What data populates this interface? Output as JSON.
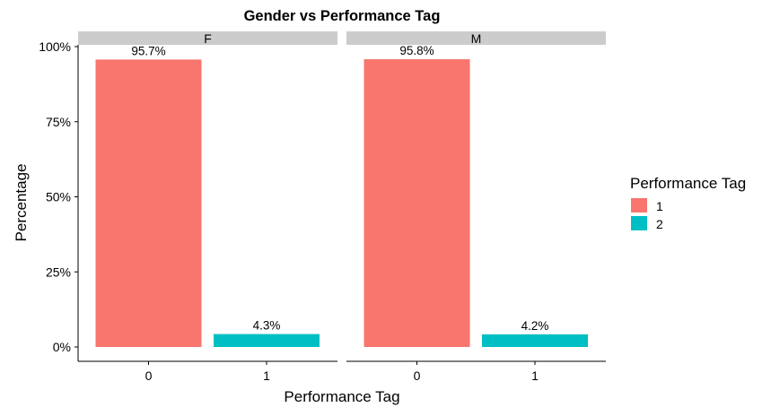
{
  "chart_data": {
    "type": "bar",
    "title": "Gender vs Performance Tag",
    "xlabel": "Performance Tag",
    "ylabel": "Percentage",
    "ylim": [
      0,
      100
    ],
    "yticks": [
      0,
      25,
      50,
      75,
      100
    ],
    "ytick_labels": [
      "0%",
      "25%",
      "50%",
      "75%",
      "100%"
    ],
    "categories": [
      "0",
      "1"
    ],
    "legend": {
      "title": "Performance Tag",
      "placement": "right",
      "entries": [
        {
          "label": "1",
          "color": "#F8766D"
        },
        {
          "label": "2",
          "color": "#00BFC4"
        }
      ]
    },
    "panels": [
      {
        "facet": "F",
        "values": [
          95.7,
          4.3
        ],
        "labels": [
          "95.7%",
          "4.3%"
        ]
      },
      {
        "facet": "M",
        "values": [
          95.8,
          4.2
        ],
        "labels": [
          "95.8%",
          "4.2%"
        ]
      }
    ],
    "grid": false
  }
}
